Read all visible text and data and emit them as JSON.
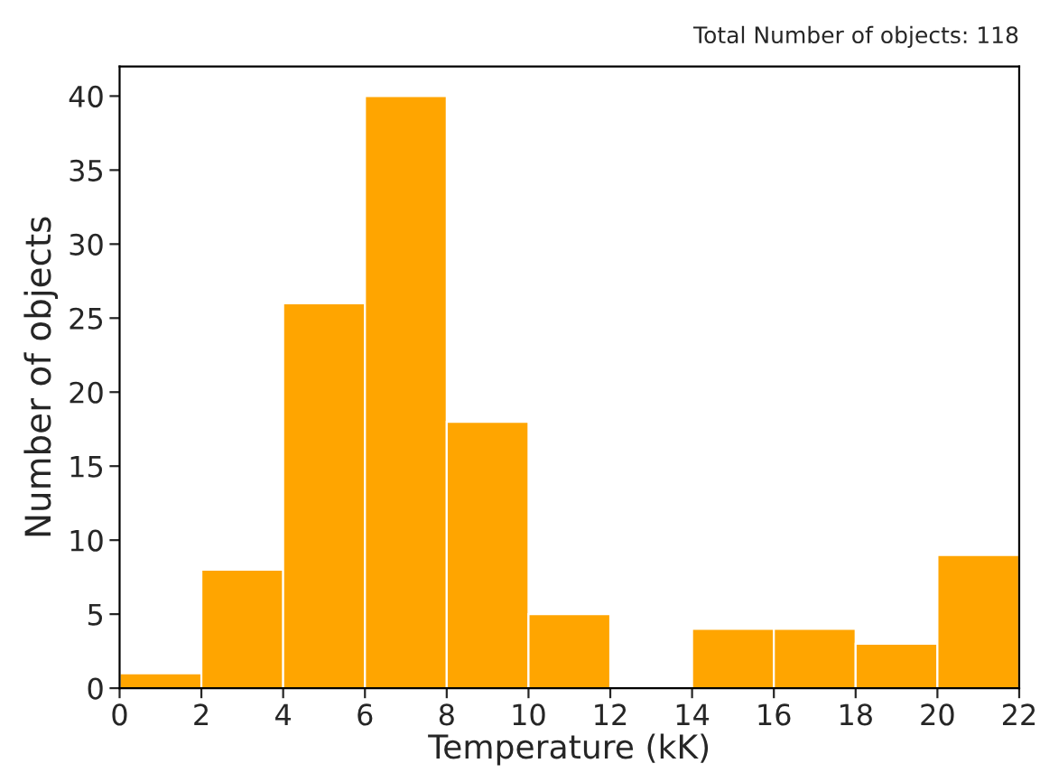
{
  "chart_data": {
    "type": "histogram",
    "xlabel": "Temperature (kK)",
    "ylabel": "Number of objects",
    "annotations": [
      "Total Number of objects: 118"
    ],
    "bins": [
      0,
      2,
      4,
      6,
      8,
      10,
      12,
      14,
      16,
      18,
      20,
      22
    ],
    "values": [
      1,
      8,
      26,
      40,
      18,
      5,
      0,
      4,
      4,
      3,
      9
    ],
    "color": "#ffa500",
    "xlim": [
      0,
      22
    ],
    "xticks": [
      0,
      2,
      4,
      6,
      8,
      10,
      12,
      14,
      16,
      18,
      20,
      22
    ],
    "ylim": [
      0,
      42
    ],
    "yticks": [
      0,
      5,
      10,
      15,
      20,
      25,
      30,
      35,
      40
    ],
    "grid": false
  }
}
